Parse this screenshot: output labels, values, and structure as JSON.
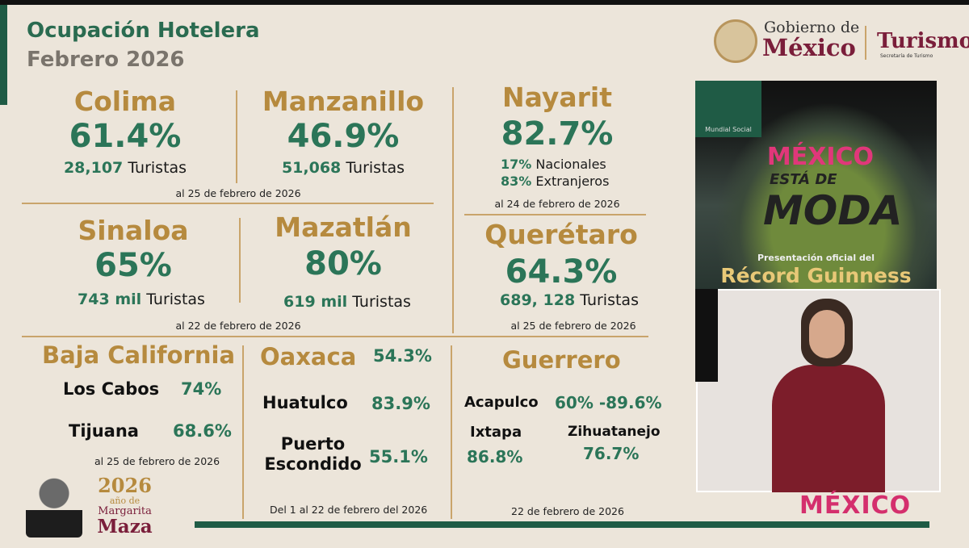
{
  "header": {
    "title": "Ocupación Hotelera",
    "subtitle": "Febrero 2026"
  },
  "logo": {
    "gob_line1": "Gobierno de",
    "gob_line2": "México",
    "dept": "Turismo",
    "dept_sub": "Secretaría de Turismo"
  },
  "colima": {
    "name": "Colima",
    "pct": "61.4%",
    "num": "28,107",
    "label": "Turistas"
  },
  "manzanillo": {
    "name": "Manzanillo",
    "pct": "46.9%",
    "num": "51,068",
    "label": "Turistas"
  },
  "date1": "al 25 de febrero de 2026",
  "nayarit": {
    "name": "Nayarit",
    "pct": "82.7%",
    "nac_pct": "17%",
    "nac": "Nacionales",
    "ext_pct": "83%",
    "ext": "Extranjeros",
    "date": "al 24 de febrero de 2026"
  },
  "sinaloa": {
    "name": "Sinaloa",
    "pct": "65%",
    "num": "743 mil",
    "label": "Turistas"
  },
  "mazatlan": {
    "name": "Mazatlán",
    "pct": "80%",
    "num": "619 mil",
    "label": "Turistas"
  },
  "date2": "al 22 de febrero de 2026",
  "queretaro": {
    "name": "Querétaro",
    "pct": "64.3%",
    "num": "689, 128",
    "label": "Turistas",
    "date": "al 25 de febrero de 2026"
  },
  "baja": {
    "name": "Baja California",
    "items": [
      {
        "city": "Los Cabos",
        "pct": "74%"
      },
      {
        "city": "Tijuana",
        "pct": "68.6%"
      }
    ],
    "date": "al 25 de febrero de 2026"
  },
  "oaxaca": {
    "name": "Oaxaca",
    "pct": "54.3%",
    "items": [
      {
        "city": "Huatulco",
        "pct": "83.9%"
      },
      {
        "city": "Puerto Escondido",
        "pct": "55.1%"
      }
    ],
    "date": "Del 1 al 22 de febrero del 2026"
  },
  "guerrero": {
    "name": "Guerrero",
    "items": [
      {
        "city": "Acapulco",
        "pct": "60% -89.6%"
      },
      {
        "city": "Ixtapa",
        "pct": "86.8%"
      },
      {
        "city": "Zihuatanejo",
        "pct": "76.7%"
      }
    ],
    "date": "22 de febrero de 2026"
  },
  "margarita": {
    "year": "2026",
    "line1": "año de",
    "line2": "Margarita",
    "line3": "Maza"
  },
  "poster": {
    "badge": "Mundial Social",
    "brand": "MÉXICO",
    "tag1": "ESTÁ DE",
    "tag2": "MODA",
    "sub": "Presentación oficial del",
    "title": "Récord Guinness"
  },
  "footer_brand": "MÉXICO"
}
